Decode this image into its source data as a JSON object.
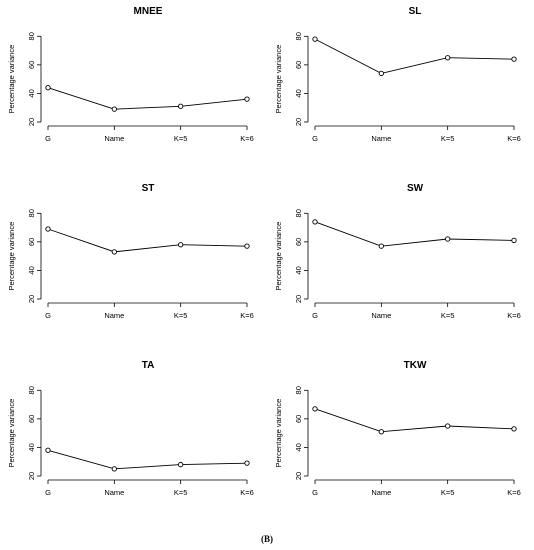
{
  "figure_label": "(B)",
  "chart_data": [
    {
      "type": "line",
      "title": "MNEE",
      "ylabel": "Percentage variance",
      "categories": [
        "G",
        "Name",
        "K=5",
        "K=6"
      ],
      "values": [
        44,
        29,
        31,
        36
      ],
      "ylim": [
        20,
        90
      ],
      "yticks": [
        20,
        40,
        60,
        80
      ],
      "grid": false,
      "markers": "open-circle"
    },
    {
      "type": "line",
      "title": "SL",
      "ylabel": "Percentage variance",
      "categories": [
        "G",
        "Name",
        "K=5",
        "K=6"
      ],
      "values": [
        78,
        54,
        65,
        64
      ],
      "ylim": [
        20,
        90
      ],
      "yticks": [
        20,
        40,
        60,
        80
      ],
      "grid": false,
      "markers": "open-circle"
    },
    {
      "type": "line",
      "title": "ST",
      "ylabel": "Percentage variance",
      "categories": [
        "G",
        "Name",
        "K=5",
        "K=6"
      ],
      "values": [
        69,
        53,
        58,
        57
      ],
      "ylim": [
        20,
        90
      ],
      "yticks": [
        20,
        40,
        60,
        80
      ],
      "grid": false,
      "markers": "open-circle"
    },
    {
      "type": "line",
      "title": "SW",
      "ylabel": "Percentage variance",
      "categories": [
        "G",
        "Name",
        "K=5",
        "K=6"
      ],
      "values": [
        74,
        57,
        62,
        61
      ],
      "ylim": [
        20,
        90
      ],
      "yticks": [
        20,
        40,
        60,
        80
      ],
      "grid": false,
      "markers": "open-circle"
    },
    {
      "type": "line",
      "title": "TA",
      "ylabel": "Percentage variance",
      "categories": [
        "G",
        "Name",
        "K=5",
        "K=6"
      ],
      "values": [
        38,
        25,
        28,
        29
      ],
      "ylim": [
        20,
        90
      ],
      "yticks": [
        20,
        40,
        60,
        80
      ],
      "grid": false,
      "markers": "open-circle"
    },
    {
      "type": "line",
      "title": "TKW",
      "ylabel": "Percentage variance",
      "categories": [
        "G",
        "Name",
        "K=5",
        "K=6"
      ],
      "values": [
        67,
        51,
        55,
        53
      ],
      "ylim": [
        20,
        90
      ],
      "yticks": [
        20,
        40,
        60,
        80
      ],
      "grid": false,
      "markers": "open-circle"
    }
  ]
}
